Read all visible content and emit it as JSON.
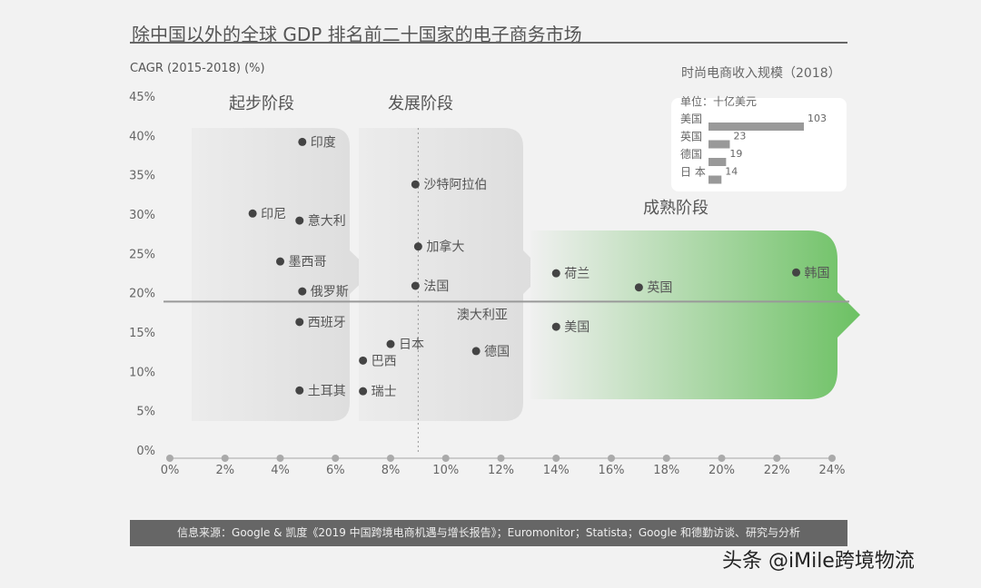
{
  "chart_data": {
    "type": "scatter",
    "title": "除中国以外的全球 GDP 排名前二十国家的电子商务市场",
    "ylabel": "CAGR (2015-2018) (%)",
    "xlabel": "",
    "xlim": [
      0,
      24
    ],
    "ylim": [
      0,
      45
    ],
    "xticks": [
      "0%",
      "2%",
      "4%",
      "6%",
      "8%",
      "10%",
      "12%",
      "14%",
      "16%",
      "18%",
      "20%",
      "22%",
      "24%"
    ],
    "yticks": [
      "0%",
      "5%",
      "10%",
      "15%",
      "20%",
      "25%",
      "30%",
      "35%",
      "40%",
      "45%"
    ],
    "grid": false,
    "reference_lines": {
      "horizontal_y": 19,
      "vertical_x": 9
    },
    "stages": [
      {
        "label": "起步阶段",
        "x_range": [
          0.8,
          6.6
        ]
      },
      {
        "label": "发展阶段",
        "x_range": [
          6.8,
          12.8
        ]
      },
      {
        "label": "成熟阶段",
        "x_range": [
          13.2,
          25
        ]
      }
    ],
    "points": [
      {
        "label": "印度",
        "x": 4.8,
        "y": 39.3
      },
      {
        "label": "印尼",
        "x": 3.0,
        "y": 30.2
      },
      {
        "label": "意大利",
        "x": 4.7,
        "y": 29.3
      },
      {
        "label": "墨西哥",
        "x": 4.0,
        "y": 24.1
      },
      {
        "label": "俄罗斯",
        "x": 4.8,
        "y": 20.3
      },
      {
        "label": "西班牙",
        "x": 4.7,
        "y": 16.4
      },
      {
        "label": "土耳其",
        "x": 4.7,
        "y": 7.7
      },
      {
        "label": "沙特阿拉伯",
        "x": 8.9,
        "y": 33.9
      },
      {
        "label": "加拿大",
        "x": 9.0,
        "y": 26.0
      },
      {
        "label": "法国",
        "x": 8.9,
        "y": 21.0
      },
      {
        "label": "日本",
        "x": 8.0,
        "y": 13.6
      },
      {
        "label": "巴西",
        "x": 7.0,
        "y": 11.5
      },
      {
        "label": "瑞士",
        "x": 7.0,
        "y": 7.6
      },
      {
        "label": "德国",
        "x": 11.1,
        "y": 12.7
      },
      {
        "label": "荷兰",
        "x": 14.0,
        "y": 22.6
      },
      {
        "label": "英国",
        "x": 17.0,
        "y": 20.8
      },
      {
        "label": "韩国",
        "x": 22.7,
        "y": 22.7
      },
      {
        "label": "美国",
        "x": 14.0,
        "y": 15.8
      }
    ],
    "annotations": [
      {
        "label": "澳大利亚",
        "x": 10.4,
        "y": 16.8
      }
    ],
    "inset": {
      "title": "时尚电商收入规模（2018）",
      "unit": "单位：十亿美元",
      "type": "bar",
      "categories": [
        "美国",
        "英国",
        "德国",
        "日 本"
      ],
      "values": [
        103,
        23,
        19,
        14
      ],
      "value_labels": [
        "103",
        "23",
        "19",
        "14"
      ]
    },
    "colors": {
      "point": "#444444",
      "stage_gray": "#e2e2e2",
      "mature_green": "#6cc163",
      "bar": "#999999"
    }
  },
  "footer": {
    "source": "信息来源：Google & 凯度《2019 中国跨境电商机遇与增长报告》；Euromonitor；Statista；Google 和德勤访谈、研究与分析"
  },
  "watermark": "头条 @iMile跨境物流"
}
